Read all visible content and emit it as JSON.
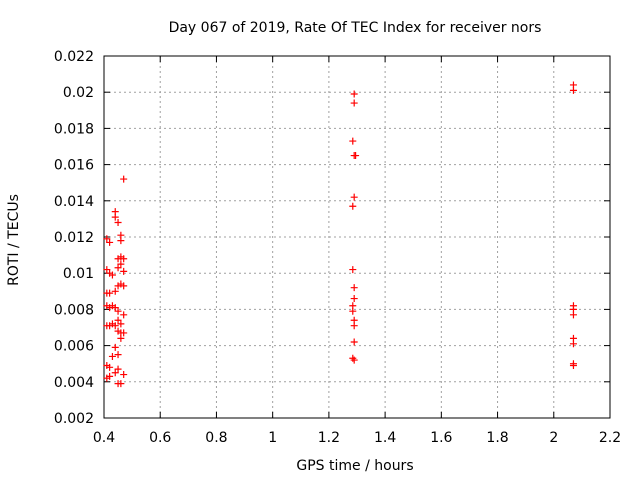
{
  "chart_data": {
    "type": "scatter",
    "title": "Day 067 of 2019, Rate Of TEC Index for receiver nors",
    "xlabel": "GPS time / hours",
    "ylabel": "ROTI / TECUs",
    "xlim": [
      0.4,
      2.2
    ],
    "ylim": [
      0.002,
      0.022
    ],
    "xticks": [
      0.4,
      0.6,
      0.8,
      1,
      1.2,
      1.4,
      1.6,
      1.8,
      2,
      2.2
    ],
    "xtick_labels": [
      "0.4",
      "0.6",
      "0.8",
      "1",
      "1.2",
      "1.4",
      "1.6",
      "1.8",
      "2",
      "2.2"
    ],
    "yticks": [
      0.002,
      0.004,
      0.006,
      0.008,
      0.01,
      0.012,
      0.014,
      0.016,
      0.018,
      0.02,
      0.022
    ],
    "ytick_labels": [
      "0.002",
      "0.004",
      "0.006",
      "0.008",
      "0.01",
      "0.012",
      "0.014",
      "0.016",
      "0.018",
      "0.02",
      "0.022"
    ],
    "grid": true,
    "marker": "+",
    "color": "#ff0000",
    "series": [
      {
        "name": "nors",
        "points": [
          [
            0.41,
            0.0119
          ],
          [
            0.42,
            0.0117
          ],
          [
            0.41,
            0.0102
          ],
          [
            0.42,
            0.01
          ],
          [
            0.41,
            0.0089
          ],
          [
            0.42,
            0.0089
          ],
          [
            0.41,
            0.0082
          ],
          [
            0.42,
            0.0081
          ],
          [
            0.41,
            0.0071
          ],
          [
            0.42,
            0.0071
          ],
          [
            0.41,
            0.0049
          ],
          [
            0.42,
            0.0048
          ],
          [
            0.41,
            0.0042
          ],
          [
            0.42,
            0.0043
          ],
          [
            0.43,
            0.0054
          ],
          [
            0.43,
            0.0072
          ],
          [
            0.43,
            0.0082
          ],
          [
            0.43,
            0.0099
          ],
          [
            0.44,
            0.0131
          ],
          [
            0.44,
            0.0134
          ],
          [
            0.44,
            0.009
          ],
          [
            0.44,
            0.0081
          ],
          [
            0.44,
            0.0071
          ],
          [
            0.44,
            0.0059
          ],
          [
            0.44,
            0.0045
          ],
          [
            0.45,
            0.0128
          ],
          [
            0.45,
            0.0108
          ],
          [
            0.45,
            0.0103
          ],
          [
            0.45,
            0.0093
          ],
          [
            0.45,
            0.0079
          ],
          [
            0.45,
            0.0074
          ],
          [
            0.45,
            0.0068
          ],
          [
            0.45,
            0.0055
          ],
          [
            0.45,
            0.0047
          ],
          [
            0.45,
            0.0039
          ],
          [
            0.46,
            0.0121
          ],
          [
            0.46,
            0.0118
          ],
          [
            0.46,
            0.0109
          ],
          [
            0.46,
            0.0105
          ],
          [
            0.46,
            0.0094
          ],
          [
            0.46,
            0.0072
          ],
          [
            0.46,
            0.0067
          ],
          [
            0.46,
            0.0064
          ],
          [
            0.46,
            0.0039
          ],
          [
            0.47,
            0.0152
          ],
          [
            0.47,
            0.0108
          ],
          [
            0.47,
            0.0101
          ],
          [
            0.47,
            0.0093
          ],
          [
            0.47,
            0.0077
          ],
          [
            0.47,
            0.0067
          ],
          [
            0.47,
            0.0044
          ],
          [
            1.285,
            0.0173
          ],
          [
            1.285,
            0.0137
          ],
          [
            1.285,
            0.0102
          ],
          [
            1.285,
            0.0082
          ],
          [
            1.285,
            0.0079
          ],
          [
            1.285,
            0.0053
          ],
          [
            1.29,
            0.0199
          ],
          [
            1.29,
            0.0194
          ],
          [
            1.29,
            0.0165
          ],
          [
            1.29,
            0.0142
          ],
          [
            1.29,
            0.0092
          ],
          [
            1.29,
            0.0086
          ],
          [
            1.29,
            0.0074
          ],
          [
            1.29,
            0.0071
          ],
          [
            1.29,
            0.0062
          ],
          [
            1.29,
            0.0052
          ],
          [
            1.295,
            0.0165
          ],
          [
            2.07,
            0.0204
          ],
          [
            2.07,
            0.0201
          ],
          [
            2.07,
            0.0082
          ],
          [
            2.07,
            0.008
          ],
          [
            2.07,
            0.0077
          ],
          [
            2.07,
            0.0064
          ],
          [
            2.07,
            0.0061
          ],
          [
            2.07,
            0.005
          ],
          [
            2.07,
            0.0049
          ]
        ]
      }
    ]
  }
}
